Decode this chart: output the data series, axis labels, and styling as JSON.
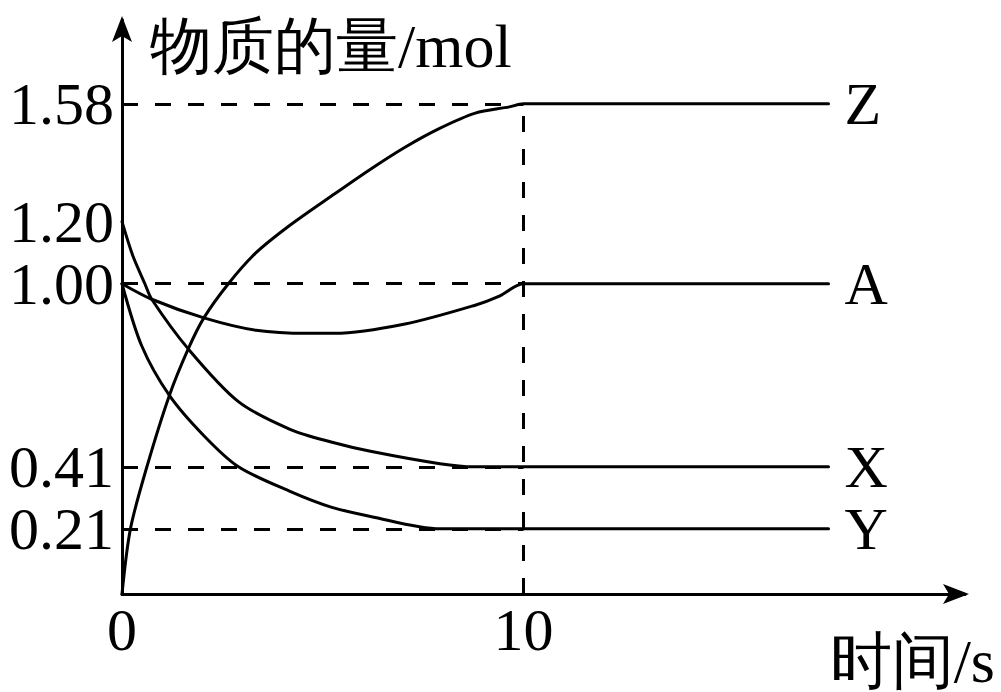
{
  "chart_data": {
    "type": "line",
    "xlabel": "时间/s",
    "ylabel": "物质的量/mol",
    "xlim": [
      0,
      21
    ],
    "xticks": [
      0,
      10
    ],
    "ylim": [
      0,
      1.85
    ],
    "yticks": [
      0.21,
      0.41,
      {
        "value": 1,
        "label": "1.00"
      },
      {
        "value": 1.2,
        "label": "1.20"
      },
      1.58
    ],
    "marker": "none",
    "series": [
      {
        "name": "Z",
        "color": "#000000",
        "x": [
          0,
          0.21,
          0.62,
          1.18,
          1.65,
          2.04,
          2.65,
          3.34,
          4.2,
          5.3,
          6.2,
          7.05,
          7.9,
          8.8,
          9.65,
          10,
          17.6
        ],
        "values": [
          0,
          0.21,
          0.41,
          0.64,
          0.79,
          0.89,
          1.0,
          1.1,
          1.19,
          1.29,
          1.37,
          1.44,
          1.5,
          1.55,
          1.57,
          1.58,
          1.58
        ]
      },
      {
        "name": "A",
        "color": "#000000",
        "x": [
          0,
          0.74,
          2.04,
          3.34,
          4.63,
          5.3,
          7.05,
          8.78,
          9.4,
          10,
          17.6
        ],
        "values": [
          1.0,
          0.95,
          0.89,
          0.85,
          0.84,
          0.84,
          0.87,
          0.93,
          0.96,
          1.0,
          1.0
        ]
      },
      {
        "name": "X",
        "color": "#000000",
        "x": [
          0,
          0.27,
          0.57,
          0.74,
          1.65,
          2.9,
          4.2,
          5.21,
          6.19,
          7.92,
          8.77,
          10,
          17.6
        ],
        "values": [
          1.2,
          1.09,
          1.0,
          0.95,
          0.79,
          0.62,
          0.53,
          0.49,
          0.46,
          0.42,
          0.41,
          0.41,
          0.41
        ]
      },
      {
        "name": "Y",
        "color": "#000000",
        "x": [
          0,
          0.49,
          1.18,
          2.04,
          2.9,
          4.2,
          5.21,
          6.19,
          7.92,
          8.77,
          10,
          17.6
        ],
        "values": [
          1.0,
          0.8,
          0.64,
          0.51,
          0.41,
          0.33,
          0.28,
          0.25,
          0.21,
          0.21,
          0.21,
          0.21
        ]
      }
    ],
    "ref_lines": [
      {
        "axis": "y",
        "value": 1.58,
        "color": "#000000",
        "line_style": "dashed"
      },
      {
        "axis": "y",
        "value": 1.0,
        "color": "#000000",
        "line_style": "dashed"
      },
      {
        "axis": "y",
        "value": 0.41,
        "color": "#000000",
        "line_style": "dashed"
      },
      {
        "axis": "y",
        "value": 0.21,
        "color": "#000000",
        "line_style": "dashed"
      },
      {
        "axis": "x",
        "value": 10,
        "color": "#000000",
        "line_style": "dashed"
      }
    ]
  }
}
